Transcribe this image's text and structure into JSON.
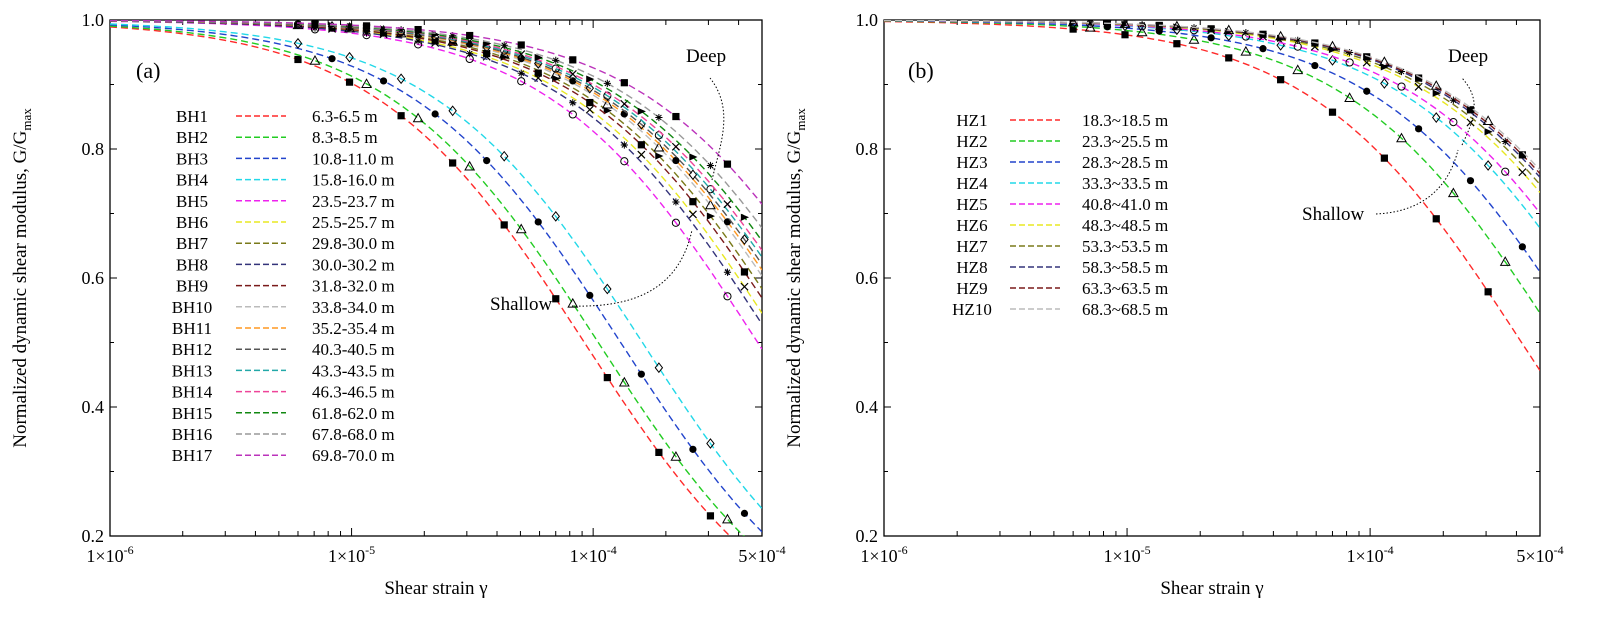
{
  "chart_data": [
    {
      "type": "line",
      "panel_label": "(a)",
      "xscale": "log",
      "xlim": [
        1e-06,
        0.0005
      ],
      "ylim": [
        0.2,
        1.0
      ],
      "xlabel": "Shear strain γ",
      "ylabel": "Normalized dynamic shear modulus, G/G",
      "ylabel_sub": "max",
      "x_ticks": [
        1e-06,
        1e-05,
        0.0001,
        0.0005
      ],
      "x_tick_labels": [
        "1×10",
        "1×10",
        "1×10",
        "5×10"
      ],
      "x_tick_exponents": [
        "-6",
        "-5",
        "-4",
        "-4"
      ],
      "y_ticks": [
        0.2,
        0.4,
        0.6,
        0.8,
        1.0
      ],
      "y_tick_labels": [
        "0.2",
        "0.4",
        "0.6",
        "0.8",
        "1.0"
      ],
      "annotations": [
        {
          "text": "Deep",
          "points_to": "deep curves (top-right)"
        },
        {
          "text": "Shallow",
          "points_to": "shallow curves (lower)"
        }
      ],
      "series": [
        {
          "name": "BH1",
          "depth": "6.3-6.5 m",
          "gamma_ref": 9.2e-05,
          "color": "#ff2a2a"
        },
        {
          "name": "BH2",
          "depth": "8.3-8.5 m",
          "gamma_ref": 0.000105,
          "color": "#22cc22"
        },
        {
          "name": "BH3",
          "depth": "10.8-11.0 m",
          "gamma_ref": 0.00013,
          "color": "#2244cc"
        },
        {
          "name": "BH4",
          "depth": "15.8-16.0 m",
          "gamma_ref": 0.00016,
          "color": "#22d8e8"
        },
        {
          "name": "BH5",
          "depth": "23.5-23.7 m",
          "gamma_ref": 0.00048,
          "color": "#ee22ee"
        },
        {
          "name": "BH6",
          "depth": "25.5-25.7 m",
          "gamma_ref": 0.0006,
          "color": "#e8e822"
        },
        {
          "name": "BH7",
          "depth": "29.8-30.0 m",
          "gamma_ref": 0.0007,
          "color": "#7a7a1a"
        },
        {
          "name": "BH8",
          "depth": "30.0-30.2 m",
          "gamma_ref": 0.00056,
          "color": "#33337a"
        },
        {
          "name": "BH9",
          "depth": "31.8-32.0 m",
          "gamma_ref": 0.00066,
          "color": "#7a1a1a"
        },
        {
          "name": "BH10",
          "depth": "33.8-34.0 m",
          "gamma_ref": 0.00076,
          "color": "#bbbbbb"
        },
        {
          "name": "BH11",
          "depth": "35.2-35.4 m",
          "gamma_ref": 0.00079,
          "color": "#ff9922"
        },
        {
          "name": "BH12",
          "depth": "40.3-40.5 m",
          "gamma_ref": 0.00082,
          "color": "#555555"
        },
        {
          "name": "BH13",
          "depth": "43.3-43.5 m",
          "gamma_ref": 0.00086,
          "color": "#22a8a8"
        },
        {
          "name": "BH14",
          "depth": "46.3-46.5 m",
          "gamma_ref": 0.0009,
          "color": "#ee4499"
        },
        {
          "name": "BH15",
          "depth": "61.8-62.0 m",
          "gamma_ref": 0.00096,
          "color": "#118811"
        },
        {
          "name": "BH16",
          "depth": "67.8-68.0 m",
          "gamma_ref": 0.00105,
          "color": "#999999"
        },
        {
          "name": "BH17",
          "depth": "69.8-70.0 m",
          "gamma_ref": 0.00125,
          "color": "#bb33bb"
        }
      ]
    },
    {
      "type": "line",
      "panel_label": "(b)",
      "xscale": "log",
      "xlim": [
        1e-06,
        0.0005
      ],
      "ylim": [
        0.2,
        1.0
      ],
      "xlabel": "Shear strain γ",
      "ylabel": "Normalized dynamic shear modulus, G/G",
      "ylabel_sub": "max",
      "x_ticks": [
        1e-06,
        1e-05,
        0.0001,
        0.0005
      ],
      "x_tick_labels": [
        "1×10",
        "1×10",
        "1×10",
        "5×10"
      ],
      "x_tick_exponents": [
        "-6",
        "-5",
        "-4",
        "-4"
      ],
      "y_ticks": [
        0.2,
        0.4,
        0.6,
        0.8,
        1.0
      ],
      "y_tick_labels": [
        "0.2",
        "0.4",
        "0.6",
        "0.8",
        "1.0"
      ],
      "annotations": [
        {
          "text": "Deep",
          "points_to": "deep curves (top-right)"
        },
        {
          "text": "Shallow",
          "points_to": "shallow curves (lower)"
        }
      ],
      "series": [
        {
          "name": "HZ1",
          "depth": "18.3~18.5 m",
          "gamma_ref": 0.00042,
          "color": "#ff2a2a"
        },
        {
          "name": "HZ2",
          "depth": "23.3~25.5 m",
          "gamma_ref": 0.0006,
          "color": "#22cc22"
        },
        {
          "name": "HZ3",
          "depth": "28.3~28.5 m",
          "gamma_ref": 0.00078,
          "color": "#2244cc"
        },
        {
          "name": "HZ4",
          "depth": "33.3~33.5 m",
          "gamma_ref": 0.00105,
          "color": "#22d8e8"
        },
        {
          "name": "HZ5",
          "depth": "40.8~41.0 m",
          "gamma_ref": 0.00117,
          "color": "#ee22ee"
        },
        {
          "name": "HZ6",
          "depth": "48.3~48.5 m",
          "gamma_ref": 0.00137,
          "color": "#e8e822"
        },
        {
          "name": "HZ7",
          "depth": "53.3~53.5 m",
          "gamma_ref": 0.00146,
          "color": "#7a7a1a"
        },
        {
          "name": "HZ8",
          "depth": "58.3~58.5 m",
          "gamma_ref": 0.00155,
          "color": "#33337a"
        },
        {
          "name": "HZ9",
          "depth": "63.3~63.5 m",
          "gamma_ref": 0.0016,
          "color": "#7a1a1a"
        },
        {
          "name": "HZ10",
          "depth": "68.3~68.5 m",
          "gamma_ref": 0.00165,
          "color": "#bbbbbb"
        }
      ]
    }
  ]
}
